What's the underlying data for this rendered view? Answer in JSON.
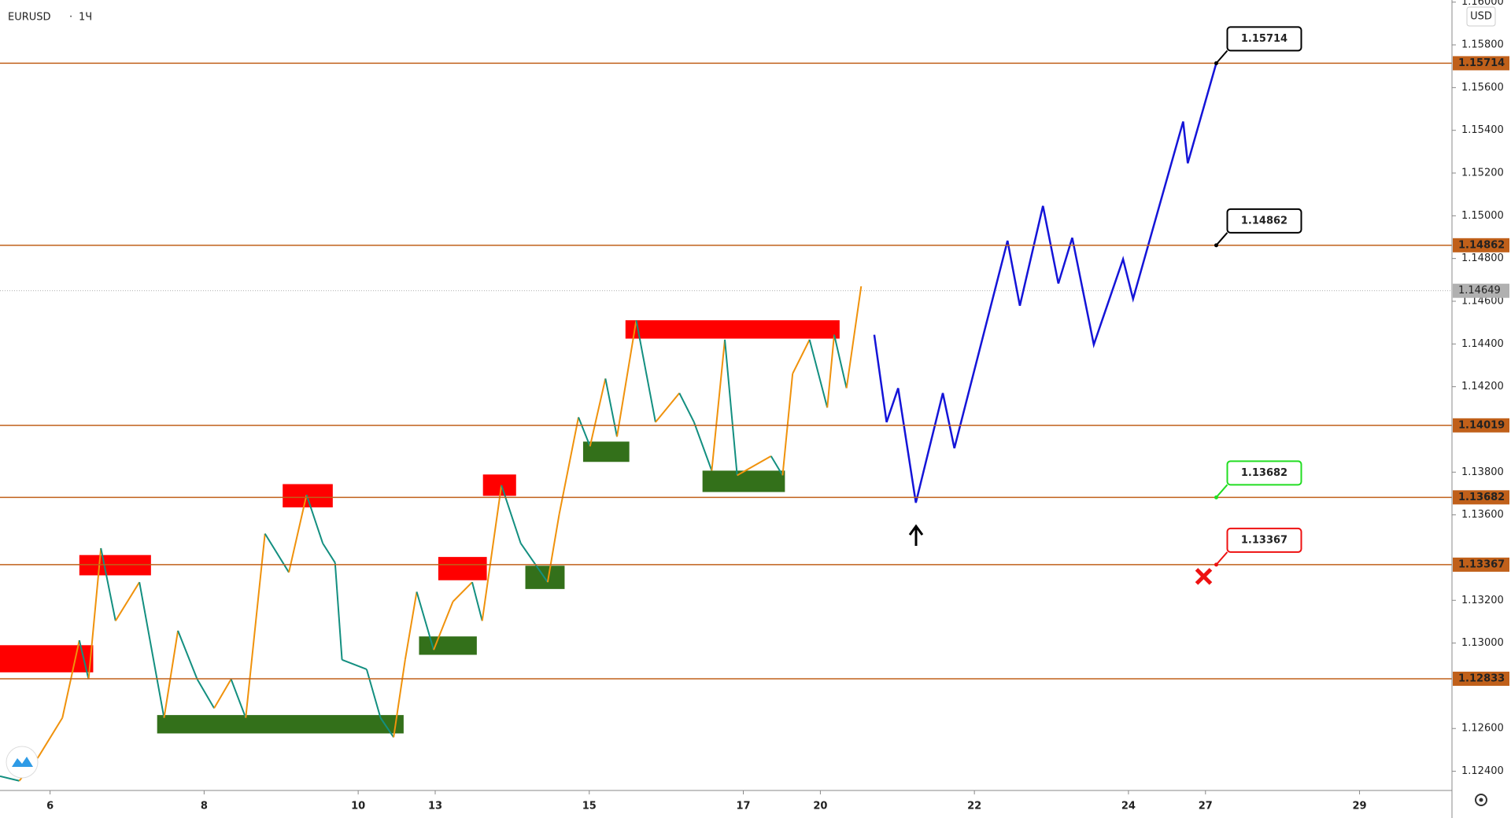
{
  "symbol": "EURUSD",
  "interval": "1Ч",
  "currency": "USD",
  "chart_data": {
    "type": "line",
    "xlim": [
      -0.65,
      18.2
    ],
    "ylim": [
      1.1231,
      1.1601
    ],
    "xticks": [
      {
        "value": 0,
        "label": "6"
      },
      {
        "value": 2,
        "label": "8"
      },
      {
        "value": 4,
        "label": "10"
      },
      {
        "value": 5,
        "label": "13"
      },
      {
        "value": 7,
        "label": "15"
      },
      {
        "value": 9,
        "label": "17"
      },
      {
        "value": 10,
        "label": "20"
      },
      {
        "value": 12,
        "label": "22"
      },
      {
        "value": 14,
        "label": "24"
      },
      {
        "value": 15,
        "label": "27"
      },
      {
        "value": 17,
        "label": "29"
      }
    ],
    "yticks": [
      {
        "value": 1.16,
        "label": "1.16000"
      },
      {
        "value": 1.158,
        "label": "1.15800"
      },
      {
        "value": 1.156,
        "label": "1.15600"
      },
      {
        "value": 1.154,
        "label": "1.15400"
      },
      {
        "value": 1.152,
        "label": "1.15200"
      },
      {
        "value": 1.15,
        "label": "1.15000"
      },
      {
        "value": 1.148,
        "label": "1.14800"
      },
      {
        "value": 1.146,
        "label": "1.14600"
      },
      {
        "value": 1.144,
        "label": "1.14400"
      },
      {
        "value": 1.142,
        "label": "1.14200"
      },
      {
        "value": 1.138,
        "label": "1.13800"
      },
      {
        "value": 1.136,
        "label": "1.13600"
      },
      {
        "value": 1.132,
        "label": "1.13200"
      },
      {
        "value": 1.13,
        "label": "1.13000"
      },
      {
        "value": 1.126,
        "label": "1.12600"
      },
      {
        "value": 1.124,
        "label": "1.12400"
      }
    ],
    "series": [
      {
        "up_color": "#f0920c",
        "down_color": "#138f80",
        "x": [
          -0.65,
          -0.4,
          -0.15,
          0.16,
          0.38,
          0.5,
          0.66,
          0.85,
          1.16,
          1.48,
          1.66,
          1.91,
          2.13,
          2.35,
          2.54,
          2.79,
          3.1,
          3.33,
          3.54,
          3.7,
          3.79,
          4.11,
          4.29,
          4.46,
          4.61,
          4.76,
          4.98,
          5.23,
          5.48,
          5.61,
          5.86,
          6.11,
          6.46,
          6.61,
          6.86,
          7.01,
          7.21,
          7.36,
          7.61,
          7.86,
          8.17,
          8.36,
          8.59,
          8.76,
          8.92,
          9.36,
          9.51,
          9.64,
          9.86,
          10.09,
          10.18,
          10.34,
          10.53
        ],
        "values": [
          1.12377,
          1.12355,
          1.12468,
          1.1265,
          1.13013,
          1.12831,
          1.13444,
          1.13104,
          1.13285,
          1.1265,
          1.13058,
          1.12831,
          1.12695,
          1.12831,
          1.1265,
          1.13512,
          1.13331,
          1.13694,
          1.13467,
          1.13376,
          1.12922,
          1.12877,
          1.1265,
          1.12559,
          1.12922,
          1.1324,
          1.12968,
          1.13194,
          1.13285,
          1.13104,
          1.13739,
          1.13467,
          1.13285,
          1.13603,
          1.14057,
          1.13921,
          1.14238,
          1.13966,
          1.14511,
          1.14034,
          1.1417,
          1.14034,
          1.13807,
          1.1442,
          1.13785,
          1.13875,
          1.13785,
          1.14261,
          1.1442,
          1.14102,
          1.14443,
          1.14193,
          1.1467
        ]
      },
      {
        "color": "#1414d8",
        "x": [
          10.7,
          10.86,
          11.01,
          11.24,
          11.59,
          11.74,
          12.43,
          12.59,
          12.89,
          13.09,
          13.27,
          13.55,
          13.93,
          14.06,
          14.71,
          14.77,
          15.14
        ],
        "values": [
          1.14443,
          1.14034,
          1.14193,
          1.13657,
          1.1417,
          1.13912,
          1.14883,
          1.14579,
          1.15046,
          1.14683,
          1.14897,
          1.14397,
          1.14797,
          1.14611,
          1.15441,
          1.15246,
          1.15714
        ]
      }
    ],
    "zones": [
      {
        "x": [
          -0.65,
          0.56
        ],
        "y": [
          1.12863,
          1.1299
        ],
        "color": "#ff0000"
      },
      {
        "x": [
          0.38,
          1.31
        ],
        "y": [
          1.13317,
          1.13412
        ],
        "color": "#ff0000"
      },
      {
        "x": [
          3.02,
          3.67
        ],
        "y": [
          1.13635,
          1.13744
        ],
        "color": "#ff0000"
      },
      {
        "x": [
          5.04,
          5.67
        ],
        "y": [
          1.13294,
          1.13403
        ],
        "color": "#ff0000"
      },
      {
        "x": [
          5.62,
          6.05
        ],
        "y": [
          1.13689,
          1.13789
        ],
        "color": "#ff0000"
      },
      {
        "x": [
          7.47,
          10.25
        ],
        "y": [
          1.14425,
          1.14511
        ],
        "color": "#ff0000"
      },
      {
        "x": [
          1.39,
          4.59
        ],
        "y": [
          1.12577,
          1.12663
        ],
        "color": "#33701a"
      },
      {
        "x": [
          4.79,
          5.54
        ],
        "y": [
          1.12945,
          1.13031
        ],
        "color": "#33701a"
      },
      {
        "x": [
          6.17,
          6.68
        ],
        "y": [
          1.13253,
          1.13362
        ],
        "color": "#33701a"
      },
      {
        "x": [
          6.92,
          7.52
        ],
        "y": [
          1.13848,
          1.13943
        ],
        "color": "#33701a"
      },
      {
        "x": [
          8.47,
          9.54
        ],
        "y": [
          1.13707,
          1.13807
        ],
        "color": "#33701a"
      }
    ],
    "levels": [
      {
        "value": 1.15714,
        "label": "1.15714",
        "color": "#c0601a",
        "callout_x": 15.14,
        "callout_color": "#000000"
      },
      {
        "value": 1.14862,
        "label": "1.14862",
        "color": "#c0601a",
        "callout_x": 15.14,
        "callout_color": "#000000"
      },
      {
        "value": 1.14019,
        "label": "1.14019",
        "color": "#c0601a"
      },
      {
        "value": 1.13682,
        "label": "1.13682",
        "color": "#c0601a",
        "callout_x": 15.14,
        "callout_color": "#22dd22"
      },
      {
        "value": 1.13367,
        "label": "1.13367",
        "color": "#c0601a",
        "callout_x": 15.14,
        "callout_color": "#ee1111"
      },
      {
        "value": 1.12833,
        "label": "1.12833",
        "color": "#c0601a"
      }
    ],
    "last_price": {
      "value": 1.14649,
      "label": "1.14649",
      "color": "#b0b0b0"
    }
  }
}
